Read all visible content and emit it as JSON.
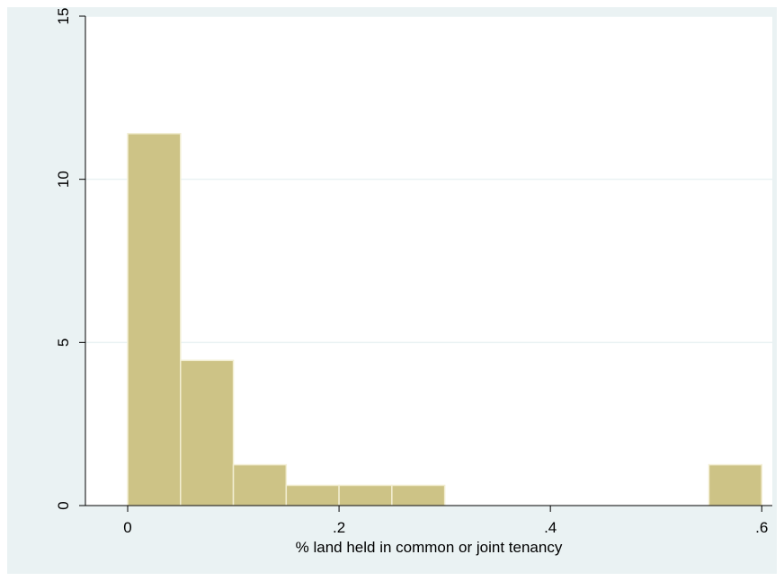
{
  "chart_data": {
    "type": "bar",
    "subtype": "histogram",
    "title": "",
    "xlabel": "% land held in common or joint tenancy",
    "ylabel": "",
    "bin_width": 0.05,
    "bins": [
      {
        "start": 0.0,
        "end": 0.05,
        "value": 11.4
      },
      {
        "start": 0.05,
        "end": 0.1,
        "value": 4.45
      },
      {
        "start": 0.1,
        "end": 0.15,
        "value": 1.25
      },
      {
        "start": 0.15,
        "end": 0.2,
        "value": 0.62
      },
      {
        "start": 0.2,
        "end": 0.25,
        "value": 0.62
      },
      {
        "start": 0.25,
        "end": 0.3,
        "value": 0.62
      },
      {
        "start": 0.55,
        "end": 0.6,
        "value": 1.25
      }
    ],
    "xlim": [
      -0.04,
      0.61
    ],
    "ylim": [
      0,
      15
    ],
    "xticks": [
      {
        "value": 0,
        "label": "0"
      },
      {
        "value": 0.2,
        "label": ".2"
      },
      {
        "value": 0.4,
        "label": ".4"
      },
      {
        "value": 0.6,
        "label": ".6"
      }
    ],
    "yticks": [
      {
        "value": 0,
        "label": "0"
      },
      {
        "value": 5,
        "label": "5"
      },
      {
        "value": 10,
        "label": "10"
      },
      {
        "value": 15,
        "label": "15"
      }
    ],
    "grid": "horizontal",
    "colors": {
      "outer_background": "#eaf2f3",
      "plot_background": "#ffffff",
      "bar_fill": "#cdc386",
      "bar_edge": "#f2eed2",
      "grid": "#eaf2f3",
      "axis": "#000000"
    }
  }
}
